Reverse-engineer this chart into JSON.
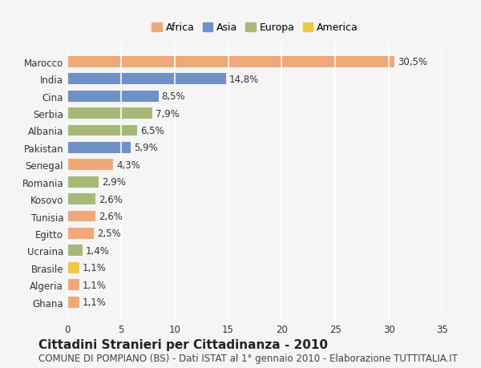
{
  "countries": [
    "Marocco",
    "India",
    "Cina",
    "Serbia",
    "Albania",
    "Pakistan",
    "Senegal",
    "Romania",
    "Kosovo",
    "Tunisia",
    "Egitto",
    "Ucraina",
    "Brasile",
    "Algeria",
    "Ghana"
  ],
  "values": [
    30.5,
    14.8,
    8.5,
    7.9,
    6.5,
    5.9,
    4.3,
    2.9,
    2.6,
    2.6,
    2.5,
    1.4,
    1.1,
    1.1,
    1.1
  ],
  "labels": [
    "30,5%",
    "14,8%",
    "8,5%",
    "7,9%",
    "6,5%",
    "5,9%",
    "4,3%",
    "2,9%",
    "2,6%",
    "2,6%",
    "2,5%",
    "1,4%",
    "1,1%",
    "1,1%",
    "1,1%"
  ],
  "continents": [
    "Africa",
    "Asia",
    "Asia",
    "Europa",
    "Europa",
    "Asia",
    "Africa",
    "Europa",
    "Europa",
    "Africa",
    "Africa",
    "Europa",
    "America",
    "Africa",
    "Africa"
  ],
  "colors": {
    "Africa": "#F0A878",
    "Asia": "#7090C8",
    "Europa": "#A8B878",
    "America": "#F0C840"
  },
  "legend_colors": {
    "Africa": "#F0A878",
    "Asia": "#7090C8",
    "Europa": "#A8B878",
    "America": "#F0C840"
  },
  "title1": "Cittadini Stranieri per Cittadinanza - 2010",
  "title2": "COMUNE DI POMPIANO (BS) - Dati ISTAT al 1° gennaio 2010 - Elaborazione TUTTITALIA.IT",
  "xlim": [
    0,
    35
  ],
  "xticks": [
    0,
    5,
    10,
    15,
    20,
    25,
    30,
    35
  ],
  "background_color": "#f5f5f5",
  "bar_height": 0.65,
  "label_fontsize": 8.5,
  "tick_fontsize": 8.5,
  "title1_fontsize": 11,
  "title2_fontsize": 8.5,
  "grid_color": "#ffffff",
  "legend_order": [
    "Africa",
    "Asia",
    "Europa",
    "America"
  ]
}
